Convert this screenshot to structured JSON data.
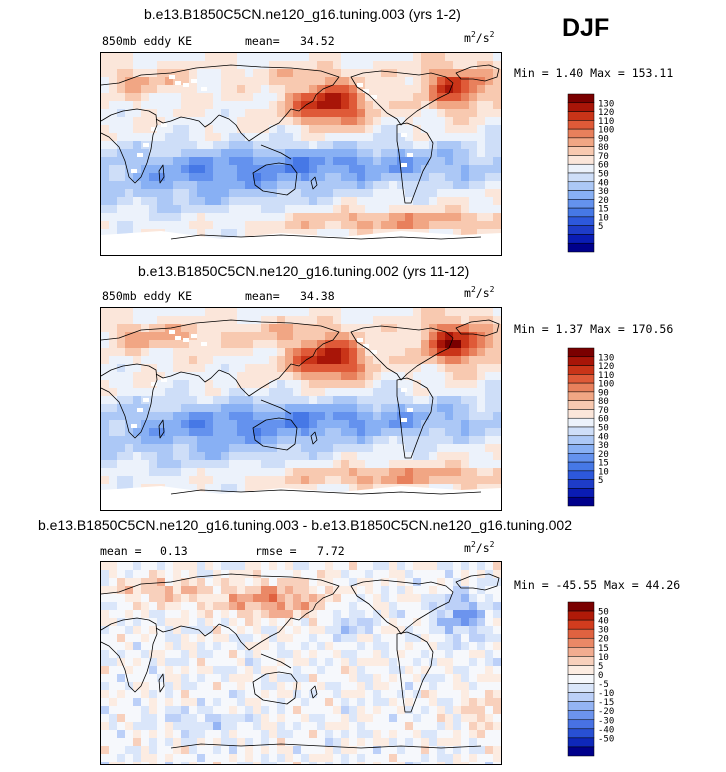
{
  "season": "DJF",
  "panels": [
    {
      "title": "b.e13.B1850C5CN.ne120_g16.tuning.003 (yrs 1-2)",
      "left_label": "850mb eddy KE",
      "stat1_label": "mean=",
      "stat1_value": "34.52",
      "stat2_label": "",
      "stat2_value": "",
      "unit_base": "m",
      "unit_exp1": "2",
      "unit_mid": "/s",
      "unit_exp2": "2",
      "minmax": "Min =   1.40 Max = 153.11"
    },
    {
      "title": "b.e13.B1850C5CN.ne120_g16.tuning.002 (yrs 11-12)",
      "left_label": "850mb eddy KE",
      "stat1_label": "mean=",
      "stat1_value": "34.38",
      "stat2_label": "",
      "stat2_value": "",
      "unit_base": "m",
      "unit_exp1": "2",
      "unit_mid": "/s",
      "unit_exp2": "2",
      "minmax": "Min =   1.37 Max = 170.56"
    },
    {
      "title": "b.e13.B1850C5CN.ne120_g16.tuning.003 - b.e13.B1850C5CN.ne120_g16.tuning.002",
      "left_label": "",
      "stat1_label": "mean =",
      "stat1_value": "0.13",
      "stat2_label": "rmse =",
      "stat2_value": "7.72",
      "unit_base": "m",
      "unit_exp1": "2",
      "unit_mid": "/s",
      "unit_exp2": "2",
      "minmax": "Min = -45.55 Max =  44.26"
    }
  ],
  "colors": {
    "abs_scale": [
      "#00008b",
      "#0a1cb4",
      "#1e3cc8",
      "#2d58dc",
      "#4678e6",
      "#6492ee",
      "#88b0f4",
      "#acc8f6",
      "#cedef8",
      "#ecf2fb",
      "#fbe6da",
      "#f8c9b0",
      "#f1a684",
      "#e8805c",
      "#df5a38",
      "#c93418",
      "#a81508",
      "#7a0000"
    ],
    "diff_scale": [
      "#00008b",
      "#0e28ba",
      "#2850d4",
      "#4872e4",
      "#6c94ee",
      "#94b4f4",
      "#bcd0f8",
      "#dae6fa",
      "#f6f8fc",
      "#fcece2",
      "#f8d0bc",
      "#f2ac90",
      "#ea8866",
      "#e06240",
      "#d23c1e",
      "#b01a08",
      "#7a0000"
    ]
  },
  "chart_data": [
    {
      "type": "heatmap",
      "title": "b.e13.B1850C5CN.ne120_g16.tuning.003 (yrs 1-2)",
      "variable": "850mb eddy KE",
      "units": "m2/s2",
      "mean": 34.52,
      "min": 1.4,
      "max": 153.11,
      "colorbar_levels": [
        130,
        120,
        110,
        100,
        90,
        80,
        70,
        60,
        50,
        40,
        30,
        20,
        15,
        10,
        5
      ]
    },
    {
      "type": "heatmap",
      "title": "b.e13.B1850C5CN.ne120_g16.tuning.002 (yrs 11-12)",
      "variable": "850mb eddy KE",
      "units": "m2/s2",
      "mean": 34.38,
      "min": 1.37,
      "max": 170.56,
      "colorbar_levels": [
        130,
        120,
        110,
        100,
        90,
        80,
        70,
        60,
        50,
        40,
        30,
        20,
        15,
        10,
        5
      ]
    },
    {
      "type": "heatmap",
      "title": "b.e13.B1850C5CN.ne120_g16.tuning.003 - b.e13.B1850C5CN.ne120_g16.tuning.002",
      "units": "m2/s2",
      "mean": 0.13,
      "rmse": 7.72,
      "min": -45.55,
      "max": 44.26,
      "colorbar_levels": [
        50,
        40,
        30,
        20,
        15,
        10,
        5,
        0,
        -5,
        -10,
        -15,
        -20,
        -30,
        -40,
        -50
      ]
    }
  ]
}
